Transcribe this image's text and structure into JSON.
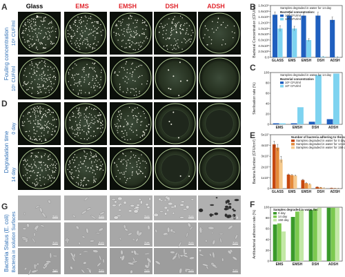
{
  "panel_letters": {
    "A": "A",
    "B": "B",
    "C": "C",
    "D": "D",
    "E": "E",
    "F": "F",
    "G": "G"
  },
  "columns": [
    {
      "label": "Glass",
      "color": "#111111"
    },
    {
      "label": "EMS",
      "color": "#e0242b"
    },
    {
      "label": "EMSH",
      "color": "#e0242b"
    },
    {
      "label": "DSH",
      "color": "#e0242b"
    },
    {
      "label": "ADSH",
      "color": "#e0242b"
    }
  ],
  "sides": {
    "fouling_title": "Fouling concentration",
    "fouling_rows": [
      "10⁸ CUF/ml",
      "10⁵ CUF/ml"
    ],
    "degradation_title": "Degradation time",
    "degradation_rows": [
      "0 day",
      "14 day"
    ],
    "status_title": "Bacteria Status (E. coli)",
    "status_rows": [
      "Surfaces",
      "Bacteria in solution"
    ]
  },
  "scale_bar": "5 μm",
  "colors": {
    "dark_blue": "#1f5fbf",
    "light_blue": "#7ed3f0",
    "orange1": "#c5470f",
    "orange2": "#e48a3a",
    "orange3": "#f5c98d",
    "green1": "#3a9a2a",
    "green2": "#7cc94f",
    "green3": "#c3e8a6"
  },
  "chart_data": [
    {
      "panel": "B",
      "type": "bar",
      "ylabel": "Bacterial Concentration (CFU/ml)",
      "categories": [
        "GLASS",
        "EMS",
        "EMSH",
        "DSH",
        "ADSH"
      ],
      "ytick_labels": [
        "0.0",
        "2.0x10⁸",
        "4.0x10⁸",
        "6.0x10⁸",
        "8.0x10⁸",
        "1.0x10⁹",
        "1.2x10⁹",
        "1.4x10⁹",
        "1.6x10⁹",
        "1.8x10⁹"
      ],
      "ylim": [
        0,
        1800000000.0
      ],
      "note": "Samples degraded in water for 14 day",
      "legend_title": "Bacterial concentration:",
      "series": [
        {
          "name": "10⁸ CFU/ml",
          "values": [
            1480000000.0,
            1450000000.0,
            1450000000.0,
            1450000000.0,
            1300000000.0
          ]
        },
        {
          "name": "10⁵ CFU/ml",
          "values": [
            1000000000.0,
            1000000000.0,
            600000000.0,
            20000000.0,
            10000000.0
          ]
        }
      ],
      "errors": [
        [
          100000000.0,
          150000000.0,
          100000000.0,
          120000000.0,
          100000000.0
        ],
        [
          100000000.0,
          80000000.0,
          50000000.0,
          10000000.0,
          10000000.0
        ]
      ]
    },
    {
      "panel": "C",
      "type": "bar",
      "ylabel": "Sterilisation rate (%)",
      "categories": [
        "EMS",
        "EMSH",
        "DSH",
        "ADSH"
      ],
      "ytick_labels": [
        "0",
        "20",
        "40",
        "60",
        "80",
        "100"
      ],
      "ylim": [
        0,
        100
      ],
      "note": "Samples degraded in water for 14 day",
      "legend_title": "Bacterial concentration",
      "series": [
        {
          "name": "10⁸ CFU/ml",
          "values": [
            2,
            2,
            5,
            10
          ]
        },
        {
          "name": "10⁵ CFU/ml",
          "values": [
            2,
            33,
            95,
            98
          ]
        }
      ]
    },
    {
      "panel": "E",
      "type": "bar",
      "ylabel": "Bacteria Number (CFU/cm²)",
      "categories": [
        "GLASS",
        "EMS",
        "EMSH",
        "DSH",
        "ADSH"
      ],
      "ytick_labels": [
        "0",
        "1x10⁷",
        "2x10⁷",
        "3x10⁷",
        "4x10⁷",
        "5x10⁷"
      ],
      "ylim": [
        0,
        50000000.0
      ],
      "legend_title": "Number of bacteria adhering to the samples",
      "series": [
        {
          "name": "Samples degraded in water for 0 day",
          "values": [
            41000000.0,
            13000000.0,
            8000000.0,
            1500000.0,
            500000.0
          ]
        },
        {
          "name": "Samples degraded in water for 14 day",
          "values": [
            38000000.0,
            12500000.0,
            5000000.0,
            1000000.0,
            300000.0
          ]
        },
        {
          "name": "Samples degraded in water for 150 day",
          "values": [
            27000000.0,
            12000000.0,
            4000000.0,
            500000.0,
            200000.0
          ]
        }
      ],
      "errors": [
        [
          3000000.0,
          500000.0,
          500000.0,
          200000.0,
          100000.0
        ],
        [
          3000000.0,
          500000.0,
          500000.0,
          200000.0,
          100000.0
        ],
        [
          3000000.0,
          500000.0,
          500000.0,
          200000.0,
          100000.0
        ]
      ]
    },
    {
      "panel": "F",
      "type": "bar",
      "ylabel": "Antibacterial adhesion rate (%)",
      "categories": [
        "EMS",
        "EMSH",
        "DSH",
        "ADSH"
      ],
      "ytick_labels": [
        "0",
        "20",
        "40",
        "60",
        "80",
        "100"
      ],
      "ylim": [
        0,
        100
      ],
      "legend_title": "Samples degraded in water for:",
      "series": [
        {
          "name": "0 day",
          "values": [
            68,
            82,
            95,
            99
          ]
        },
        {
          "name": "14 day",
          "values": [
            70,
            92,
            97,
            99
          ]
        },
        {
          "name": "150 day",
          "values": [
            55,
            95,
            99,
            99
          ]
        }
      ]
    }
  ]
}
